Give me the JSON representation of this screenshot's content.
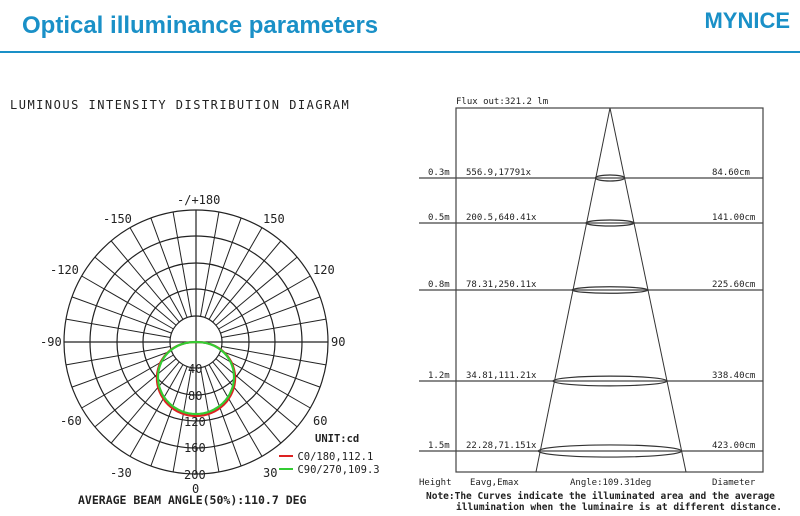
{
  "header": {
    "title": "Optical illuminance parameters",
    "brand": "MYNICE",
    "accent_color": "#1a90c7"
  },
  "polar": {
    "title": "LUMINOUS INTENSITY DISTRIBUTION DIAGRAM",
    "angle_labels": [
      "-/+180",
      "-150",
      "150",
      "-120",
      "120",
      "-90",
      "90",
      "-60",
      "60",
      "-30",
      "30",
      "0"
    ],
    "radial_labels": [
      "40",
      "80",
      "120",
      "160",
      "200"
    ],
    "unit": "UNIT:cd",
    "legend": [
      {
        "label": "C0/180,112.1",
        "color": "#dd2222"
      },
      {
        "label": "C90/270,109.3",
        "color": "#33cc33"
      }
    ],
    "beam_angle": "AVERAGE BEAM ANGLE(50%):110.7 DEG"
  },
  "cone": {
    "flux": "Flux out:321.2 lm",
    "rows": [
      {
        "height": "0.3m",
        "values": "556.9,17791x",
        "diameter": "84.60cm"
      },
      {
        "height": "0.5m",
        "values": "200.5,640.41x",
        "diameter": "141.00cm"
      },
      {
        "height": "0.8m",
        "values": "78.31,250.11x",
        "diameter": "225.60cm"
      },
      {
        "height": "1.2m",
        "values": "34.81,111.21x",
        "diameter": "338.40cm"
      },
      {
        "height": "1.5m",
        "values": "22.28,71.151x",
        "diameter": "423.00cm"
      }
    ],
    "footer": {
      "height": "Height",
      "eavg": "Eavg,Emax",
      "angle": "Angle:109.31deg",
      "diameter": "Diameter"
    },
    "note_line1": "Note:The Curves indicate the illuminated area and the average",
    "note_line2": "illumination when the luminaire is at different distance."
  }
}
